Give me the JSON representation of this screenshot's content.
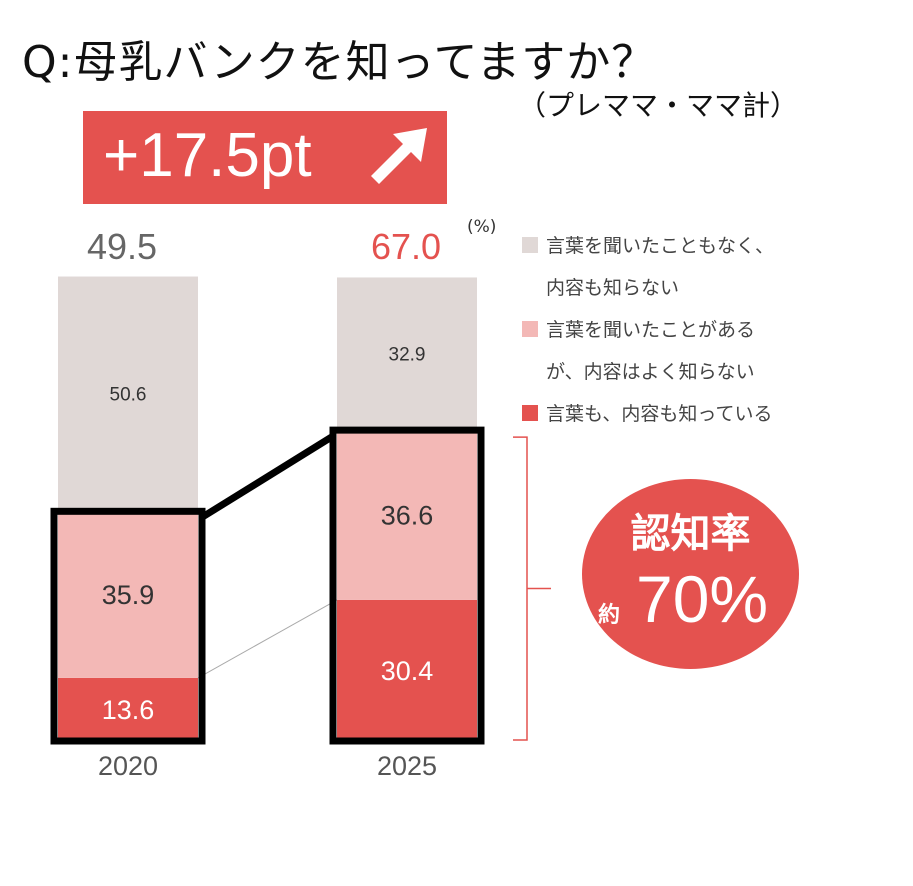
{
  "header": {
    "title": "Q:母乳バンクを知ってますか？",
    "subtitle": "（プレママ・ママ計）"
  },
  "badge": {
    "text": "+17.5pt",
    "icon": "arrow-up-right-icon"
  },
  "unit_label": "(%)",
  "totals": {
    "y2020": "49.5",
    "y2025": "67.0"
  },
  "callout": {
    "label": "認知率",
    "prefix": "約",
    "value": "70%"
  },
  "legend": [
    {
      "lines": [
        "言葉を聞いたこともなく、",
        "内容も知らない"
      ],
      "color": "#e0d8d6"
    },
    {
      "lines": [
        "言葉を聞いたことがある",
        "が、内容はよく知らない"
      ],
      "color": "#f3b8b6"
    },
    {
      "lines": [
        "言葉も、内容も知っている"
      ],
      "color": "#e4524f"
    }
  ],
  "colors": {
    "accent": "#e4524f",
    "light": "#f3b8b6",
    "grey": "#e0d8d6",
    "highlight_border": "#000000"
  },
  "chart_data": {
    "type": "bar",
    "stacked": true,
    "categories": [
      "2020",
      "2025"
    ],
    "series": [
      {
        "name": "言葉も、内容も知っている",
        "values": [
          13.6,
          30.4
        ],
        "labels": [
          "13.6",
          "30.4"
        ]
      },
      {
        "name": "言葉を聞いたことがあるが、内容はよく知らない",
        "values": [
          35.9,
          36.6
        ],
        "labels": [
          "35.9",
          "36.6"
        ]
      },
      {
        "name": "言葉を聞いたこともなく、内容も知らない",
        "values": [
          50.6,
          32.9
        ],
        "labels": [
          "50.6",
          "32.9"
        ]
      }
    ],
    "ylim": [
      0,
      100
    ],
    "xlabel": "",
    "ylabel": ""
  }
}
